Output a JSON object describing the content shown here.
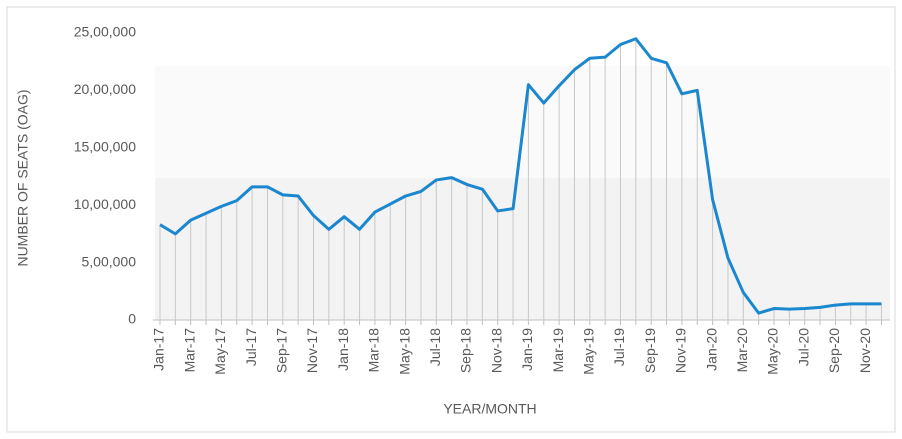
{
  "chart_data": {
    "type": "line",
    "x_label": "YEAR/MONTH",
    "y_label": "NUMBER OF SEATS (OAG)",
    "categories": [
      "Jan-17",
      null,
      "Mar-17",
      null,
      "May-17",
      null,
      "Jul-17",
      null,
      "Sep-17",
      null,
      "Nov-17",
      null,
      "Jan-18",
      null,
      "Mar-18",
      null,
      "May-18",
      null,
      "Jul-18",
      null,
      "Sep-18",
      null,
      "Nov-18",
      null,
      "Jan-19",
      null,
      "Mar-19",
      null,
      "May-19",
      null,
      "Jul-19",
      null,
      "Sep-19",
      null,
      "Nov-19",
      null,
      "Jan-20",
      null,
      "Mar-20",
      null,
      "May-20",
      null,
      "Jul-20",
      null,
      "Sep-20",
      null,
      "Nov-20",
      null
    ],
    "series": [
      {
        "name": "Number of seats",
        "color": "#1b87cf",
        "values": [
          830000,
          750000,
          870000,
          930000,
          990000,
          1040000,
          1160000,
          1160000,
          1090000,
          1080000,
          910000,
          790000,
          900000,
          790000,
          940000,
          1010000,
          1080000,
          1120000,
          1220000,
          1240000,
          1180000,
          1140000,
          950000,
          970000,
          2050000,
          1890000,
          2040000,
          2180000,
          2280000,
          2290000,
          2400000,
          2450000,
          2280000,
          2240000,
          1970000,
          2000000,
          1050000,
          540000,
          240000,
          60000,
          100000,
          95000,
          100000,
          110000,
          130000,
          140000,
          140000,
          140000
        ]
      }
    ],
    "ylim": [
      0,
      2500000
    ],
    "yticks": [
      0,
      {
        "value": 500000,
        "label": "5,00,000"
      },
      {
        "value": 1000000,
        "label": "10,00,000"
      },
      {
        "value": 1500000,
        "label": "15,00,000"
      },
      {
        "value": 2000000,
        "label": "20,00,000"
      },
      {
        "value": 2500000,
        "label": "25,00,000"
      }
    ]
  }
}
